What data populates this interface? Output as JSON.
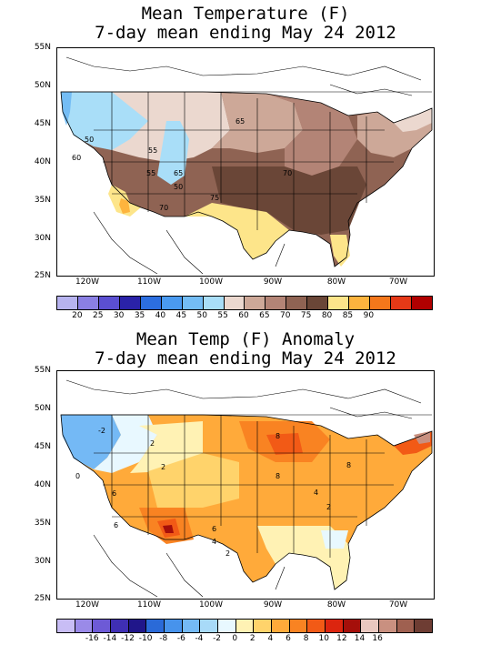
{
  "panels": [
    {
      "id": "mean-temperature",
      "title_line1": "Mean Temperature (F)",
      "title_line2": "7-day mean ending May 24 2012",
      "lat_labels": [
        "55N",
        "50N",
        "45N",
        "40N",
        "35N",
        "30N",
        "25N"
      ],
      "lon_labels": [
        "120W",
        "110W",
        "100W",
        "90W",
        "80W",
        "70W"
      ],
      "contour_labels": [
        "50",
        "55",
        "55",
        "60",
        "65",
        "65",
        "70",
        "70",
        "75",
        "50"
      ],
      "colorbar": {
        "colors": [
          "#b7b3ef",
          "#8a7fe3",
          "#5b4fd1",
          "#2a22a8",
          "#2c6ee0",
          "#4a9af0",
          "#74bdf5",
          "#a9def8",
          "#ebd8cf",
          "#cda898",
          "#b38476",
          "#8f6353",
          "#6a4637",
          "#fde58a",
          "#fdb43e",
          "#f4771b",
          "#e53917",
          "#b00000"
        ],
        "labels": [
          "20",
          "25",
          "30",
          "35",
          "40",
          "45",
          "50",
          "55",
          "60",
          "65",
          "70",
          "75",
          "80",
          "85",
          "90"
        ]
      }
    },
    {
      "id": "mean-temp-anomaly",
      "title_line1": "Mean Temp (F) Anomaly",
      "title_line2": "7-day mean ending May 24 2012",
      "lat_labels": [
        "55N",
        "50N",
        "45N",
        "40N",
        "35N",
        "30N",
        "25N"
      ],
      "lon_labels": [
        "120W",
        "110W",
        "100W",
        "90W",
        "80W",
        "70W"
      ],
      "contour_labels": [
        "-2",
        "0",
        "2",
        "2",
        "6",
        "6",
        "8",
        "8",
        "4",
        "4",
        "2",
        "2",
        "8",
        "6"
      ],
      "colorbar": {
        "colors": [
          "#c8bdf5",
          "#9a8ae8",
          "#6d5ad6",
          "#3f2fb4",
          "#20168a",
          "#2a6ad8",
          "#4793ec",
          "#74b9f5",
          "#a8daf8",
          "#e8f8ff",
          "#fff2b4",
          "#ffd36b",
          "#ffaa3a",
          "#f98322",
          "#f25a16",
          "#dc250f",
          "#a50f0a",
          "#e9c8c0",
          "#c99080",
          "#9f6050",
          "#6e3d33"
        ],
        "labels": [
          "-16",
          "-14",
          "-12",
          "-10",
          "-8",
          "-6",
          "-4",
          "-2",
          "0",
          "2",
          "4",
          "6",
          "8",
          "10",
          "12",
          "14",
          "16"
        ]
      }
    }
  ]
}
